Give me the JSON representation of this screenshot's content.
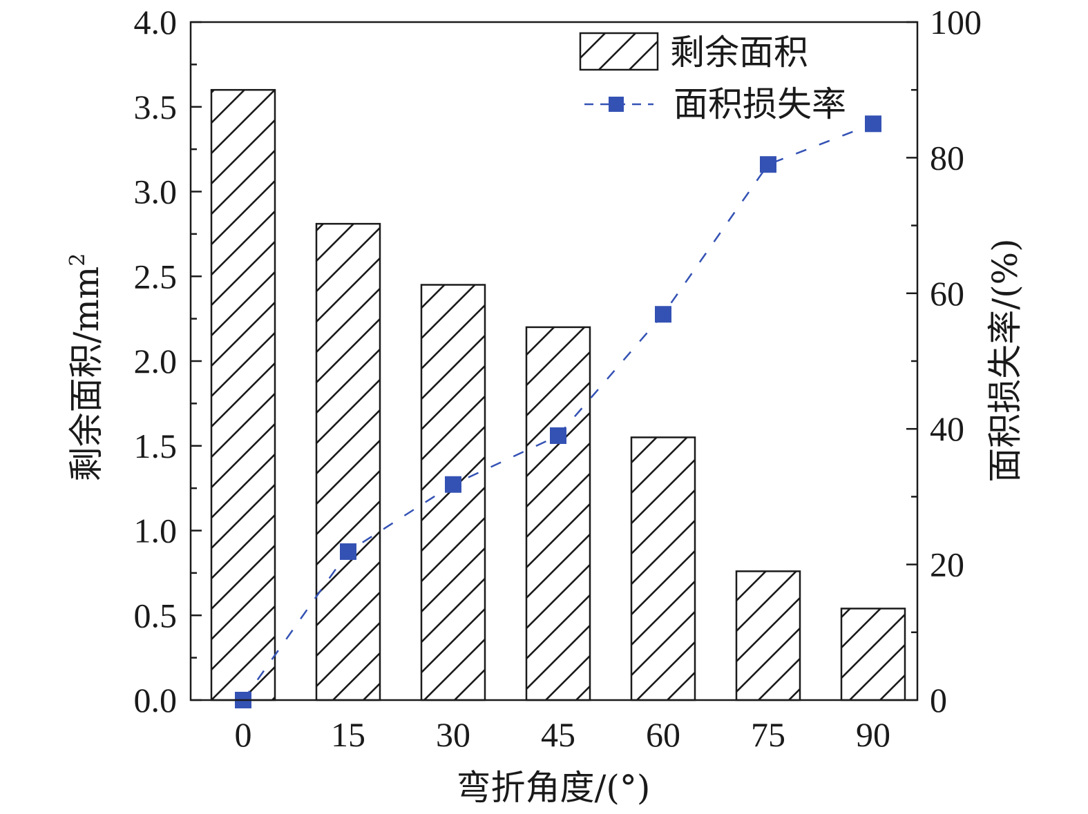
{
  "chart_data": {
    "type": "bar",
    "categories": [
      "0",
      "15",
      "30",
      "45",
      "60",
      "75",
      "90"
    ],
    "xlabel": "弯折角度/(°)",
    "ylabel": "剩余面积/mm",
    "ylabel_sup": "2",
    "y2label": "面积损失率/(%)",
    "ylim": [
      0,
      4.0
    ],
    "y2lim": [
      0,
      100
    ],
    "yticks": [
      "0.0",
      "0.5",
      "1.0",
      "1.5",
      "2.0",
      "2.5",
      "3.0",
      "3.5",
      "4.0"
    ],
    "y2ticks": [
      "0",
      "20",
      "40",
      "60",
      "80",
      "100"
    ],
    "grid": false,
    "legend_position": "top-right",
    "series": [
      {
        "name": "剩余面积",
        "kind": "bar",
        "axis": "left",
        "pattern": "diagonal-hatch",
        "values": [
          3.6,
          2.81,
          2.45,
          2.2,
          1.55,
          0.76,
          0.54
        ]
      },
      {
        "name": "面积损失率",
        "kind": "line",
        "axis": "right",
        "marker": "square",
        "line_style": "dashed",
        "color": "#3452b4",
        "values": [
          0,
          21.9,
          31.8,
          39,
          56.9,
          79,
          85
        ]
      }
    ]
  }
}
